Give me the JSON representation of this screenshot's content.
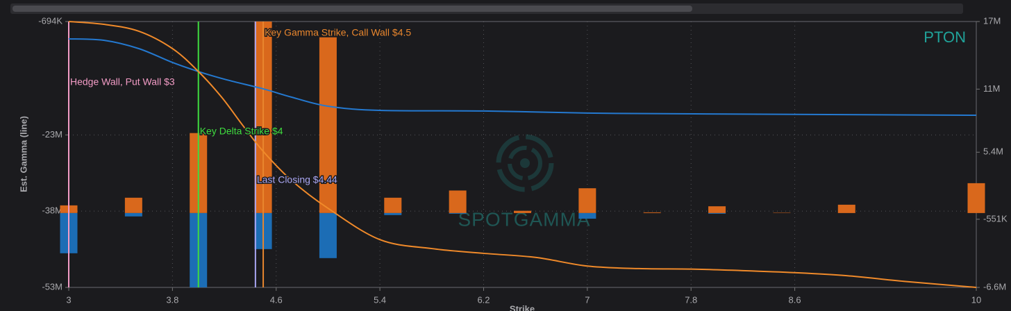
{
  "chart_data": {
    "type": "combo",
    "title": "PTON",
    "watermark": "SPOTGAMMA",
    "ylabel": "Est. Gamma (line)",
    "xlabel": "Strike",
    "xlim": [
      3,
      10
    ],
    "xticks": [
      3,
      3.8,
      4.6,
      5.4,
      6.2,
      7,
      7.8,
      8.6,
      10
    ],
    "ylim": [
      -53000000,
      -694000
    ],
    "yticks": [
      {
        "value": -694000,
        "label": "-694K"
      },
      {
        "value": -23000000,
        "label": "-23M"
      },
      {
        "value": -38000000,
        "label": "-38M"
      },
      {
        "value": -53000000,
        "label": "-53M"
      }
    ],
    "y2lim": [
      -6600000,
      17000000
    ],
    "y2ticks": [
      {
        "value": 17000000,
        "label": "17M"
      },
      {
        "value": 11000000,
        "label": "11M"
      },
      {
        "value": 5400000,
        "label": "5.4M"
      },
      {
        "value": -551000,
        "label": "-551K"
      },
      {
        "value": -6600000,
        "label": "-6.6M"
      }
    ],
    "grid": true,
    "series": [
      {
        "type": "bar",
        "axis": "y2",
        "color": "#d9681c",
        "x": [
          3,
          3.5,
          4,
          4.5,
          5,
          5.5,
          6,
          6.5,
          7,
          7.5,
          8,
          8.5,
          9,
          9.5,
          10
        ],
        "values": [
          680000,
          1360000,
          7100000,
          17000000,
          15600000,
          1360000,
          2000000,
          200000,
          2200000,
          60000,
          600000,
          30000,
          740000,
          0,
          2650000
        ]
      },
      {
        "type": "bar",
        "axis": "y2",
        "color": "#1c6db5",
        "x": [
          3,
          3.5,
          4,
          4.5,
          5,
          5.5,
          6,
          6.5,
          7,
          7.5,
          8,
          8.5,
          9,
          9.5,
          10
        ],
        "values": [
          -3570000,
          -300000,
          -6600000,
          -3200000,
          -4000000,
          -180000,
          -60000,
          0,
          -500000,
          0,
          -60000,
          0,
          0,
          0,
          0
        ]
      },
      {
        "type": "line",
        "color": "#2479d0",
        "x": [
          3,
          3.27,
          3.54,
          3.8,
          4.0,
          4.22,
          4.5,
          4.72,
          5.0,
          5.4,
          6.2,
          7.0,
          7.83,
          10
        ],
        "values": [
          -4110000,
          -4380000,
          -6020000,
          -8750000,
          -10530000,
          -12170000,
          -13940000,
          -15580000,
          -17360000,
          -18180000,
          -18300000,
          -18700000,
          -18860000,
          -19130000
        ]
      },
      {
        "type": "line",
        "color": "#f08a2a",
        "x": [
          3,
          3.27,
          3.54,
          3.8,
          4.0,
          4.18,
          4.34,
          4.5,
          4.72,
          5.0,
          5.4,
          5.8,
          6.2,
          6.6,
          7.0,
          7.4,
          7.8,
          8.2,
          8.6,
          9.0,
          9.44,
          10
        ],
        "values": [
          -694000,
          -1240000,
          -2600000,
          -6020000,
          -10530000,
          -15600000,
          -21050000,
          -26240000,
          -31980000,
          -37440000,
          -43600000,
          -45360000,
          -46300000,
          -47100000,
          -48800000,
          -49300000,
          -49400000,
          -49700000,
          -50100000,
          -50700000,
          -51800000,
          -53000000
        ]
      }
    ],
    "annotations": [
      {
        "text": "Hedge Wall, Put Wall $3",
        "x": 3,
        "color": "#f39cc6"
      },
      {
        "text": "Key Delta Strike $4",
        "x": 4,
        "color": "#3fdc3f"
      },
      {
        "text": "Last Closing $4.44",
        "x": 4.44,
        "color": "#a9a6f2"
      },
      {
        "text": "Key Gamma Strike, Call Wall $4.5",
        "x": 4.5,
        "color": "#e8862e"
      }
    ]
  }
}
